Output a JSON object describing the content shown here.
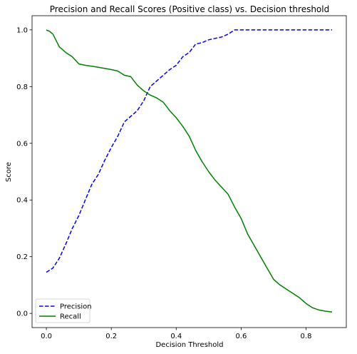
{
  "chart_data": {
    "type": "line",
    "title": "Precision and Recall Scores (Positive class) vs. Decision threshold",
    "xlabel": "Decision Threshold",
    "ylabel": "Score",
    "xlim": [
      -0.044,
      0.924
    ],
    "ylim": [
      -0.05,
      1.05
    ],
    "x_ticks": [
      0.0,
      0.2,
      0.4,
      0.6,
      0.8
    ],
    "x_tick_labels": [
      "0.0",
      "0.2",
      "0.4",
      "0.6",
      "0.8"
    ],
    "y_ticks": [
      0.0,
      0.2,
      0.4,
      0.6,
      0.8,
      1.0
    ],
    "y_tick_labels": [
      "0.0",
      "0.2",
      "0.4",
      "0.6",
      "0.8",
      "1.0"
    ],
    "grid": false,
    "legend_position": "lower-left",
    "series": [
      {
        "name": "Precision",
        "color": "#0000ff",
        "line_style": "dashed",
        "x": [
          0.0,
          0.02,
          0.04,
          0.06,
          0.08,
          0.1,
          0.12,
          0.14,
          0.16,
          0.18,
          0.2,
          0.22,
          0.24,
          0.26,
          0.28,
          0.3,
          0.32,
          0.34,
          0.36,
          0.38,
          0.4,
          0.42,
          0.44,
          0.46,
          0.48,
          0.5,
          0.52,
          0.54,
          0.56,
          0.58,
          0.6,
          0.62,
          0.64,
          0.7,
          0.76,
          0.8,
          0.84,
          0.88
        ],
        "values": [
          0.145,
          0.16,
          0.195,
          0.245,
          0.3,
          0.345,
          0.4,
          0.455,
          0.49,
          0.54,
          0.585,
          0.625,
          0.675,
          0.695,
          0.715,
          0.75,
          0.8,
          0.82,
          0.84,
          0.86,
          0.875,
          0.905,
          0.92,
          0.95,
          0.955,
          0.965,
          0.97,
          0.975,
          0.985,
          1.0,
          1.0,
          1.0,
          1.0,
          1.0,
          1.0,
          1.0,
          1.0,
          1.0
        ]
      },
      {
        "name": "Recall",
        "color": "#008000",
        "line_style": "solid",
        "x": [
          0.0,
          0.01,
          0.02,
          0.04,
          0.06,
          0.08,
          0.1,
          0.12,
          0.14,
          0.16,
          0.18,
          0.2,
          0.22,
          0.24,
          0.26,
          0.28,
          0.3,
          0.32,
          0.34,
          0.36,
          0.38,
          0.4,
          0.42,
          0.44,
          0.46,
          0.48,
          0.5,
          0.52,
          0.54,
          0.56,
          0.58,
          0.6,
          0.62,
          0.64,
          0.66,
          0.68,
          0.7,
          0.72,
          0.74,
          0.76,
          0.78,
          0.8,
          0.82,
          0.84,
          0.86,
          0.88
        ],
        "values": [
          1.0,
          0.995,
          0.985,
          0.94,
          0.92,
          0.905,
          0.88,
          0.875,
          0.872,
          0.868,
          0.864,
          0.86,
          0.855,
          0.84,
          0.835,
          0.805,
          0.785,
          0.77,
          0.76,
          0.745,
          0.715,
          0.69,
          0.66,
          0.625,
          0.575,
          0.535,
          0.5,
          0.47,
          0.445,
          0.42,
          0.375,
          0.335,
          0.28,
          0.24,
          0.2,
          0.16,
          0.12,
          0.1,
          0.085,
          0.07,
          0.055,
          0.035,
          0.02,
          0.012,
          0.008,
          0.005
        ]
      }
    ]
  }
}
